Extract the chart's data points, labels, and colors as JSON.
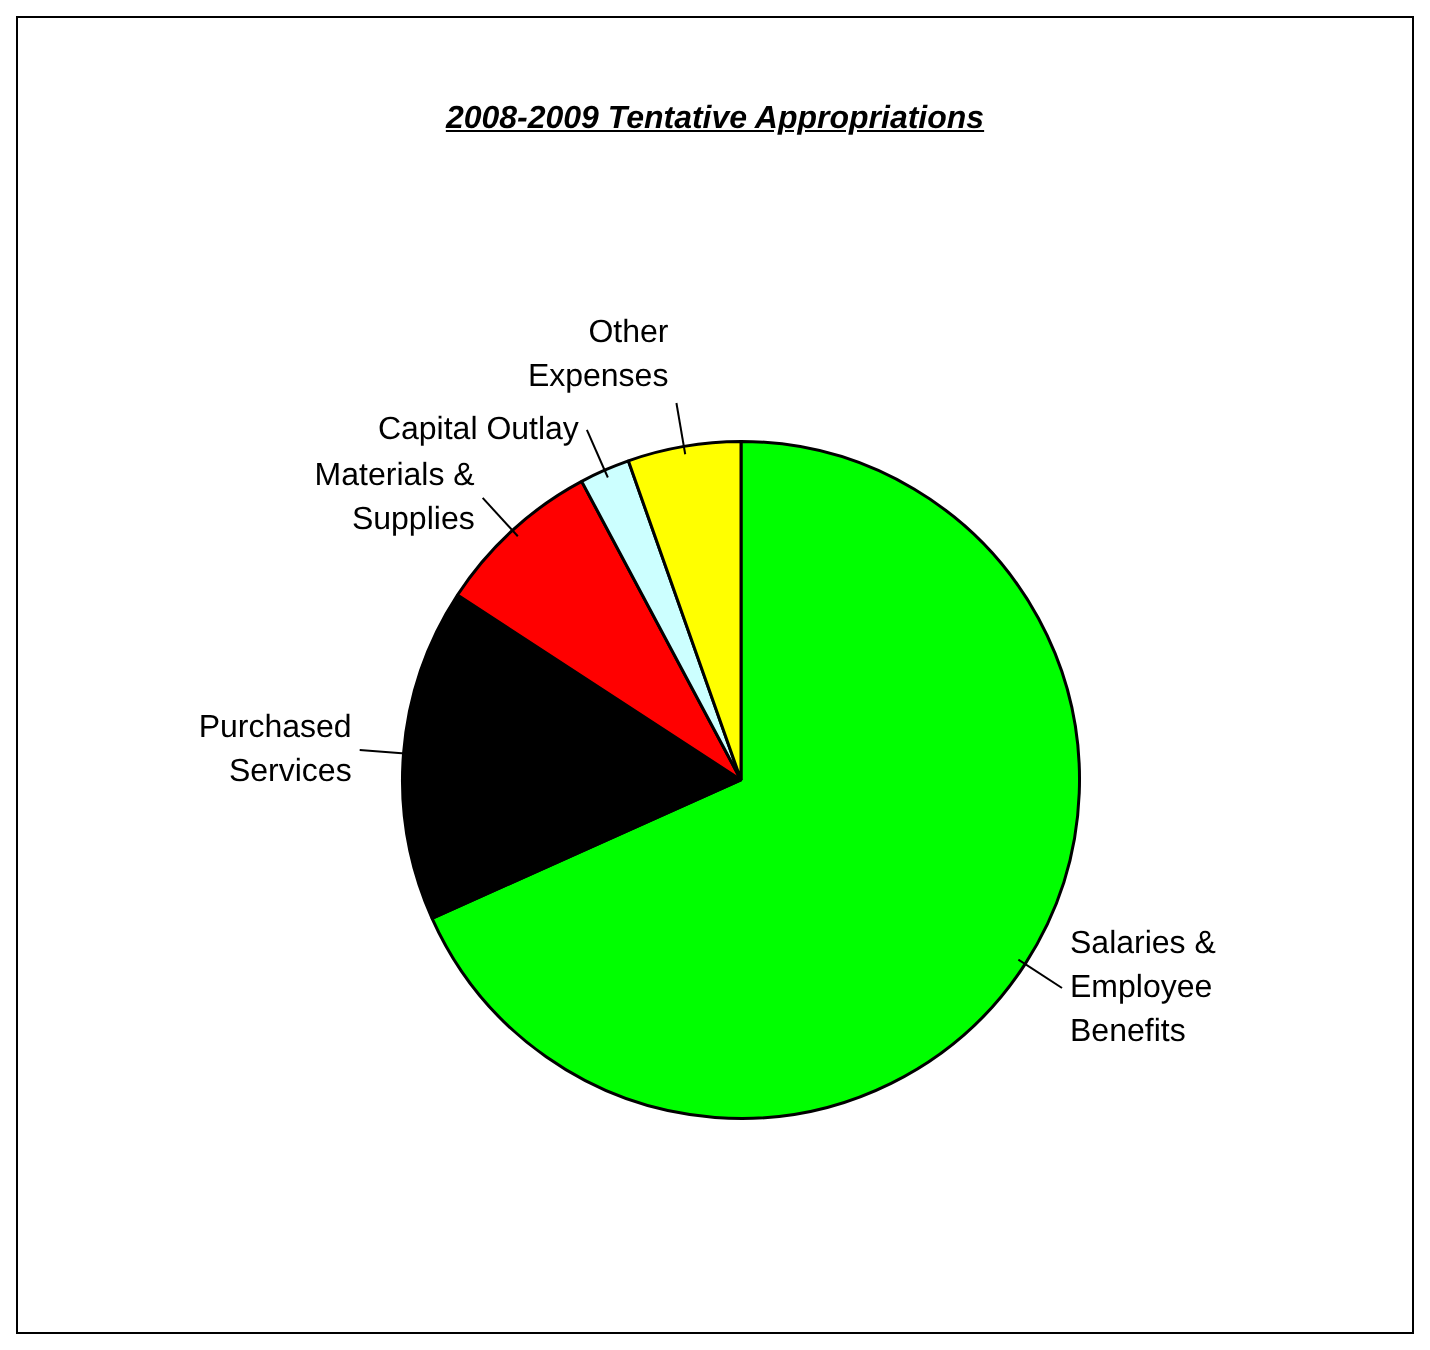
{
  "chart_data": {
    "type": "pie",
    "title": "2008-2009 Tentative Appropriations",
    "categories": [
      "Salaries & Employee Benefits",
      "Purchased Services",
      "Materials & Supplies",
      "Capital Outlay",
      "Other Expenses"
    ],
    "values": [
      68.3,
      15.9,
      8.0,
      2.4,
      5.4
    ],
    "colors": [
      "#00ff00",
      "#000000",
      "#ff0000",
      "#ccffff",
      "#ffff00"
    ],
    "legend": false
  }
}
